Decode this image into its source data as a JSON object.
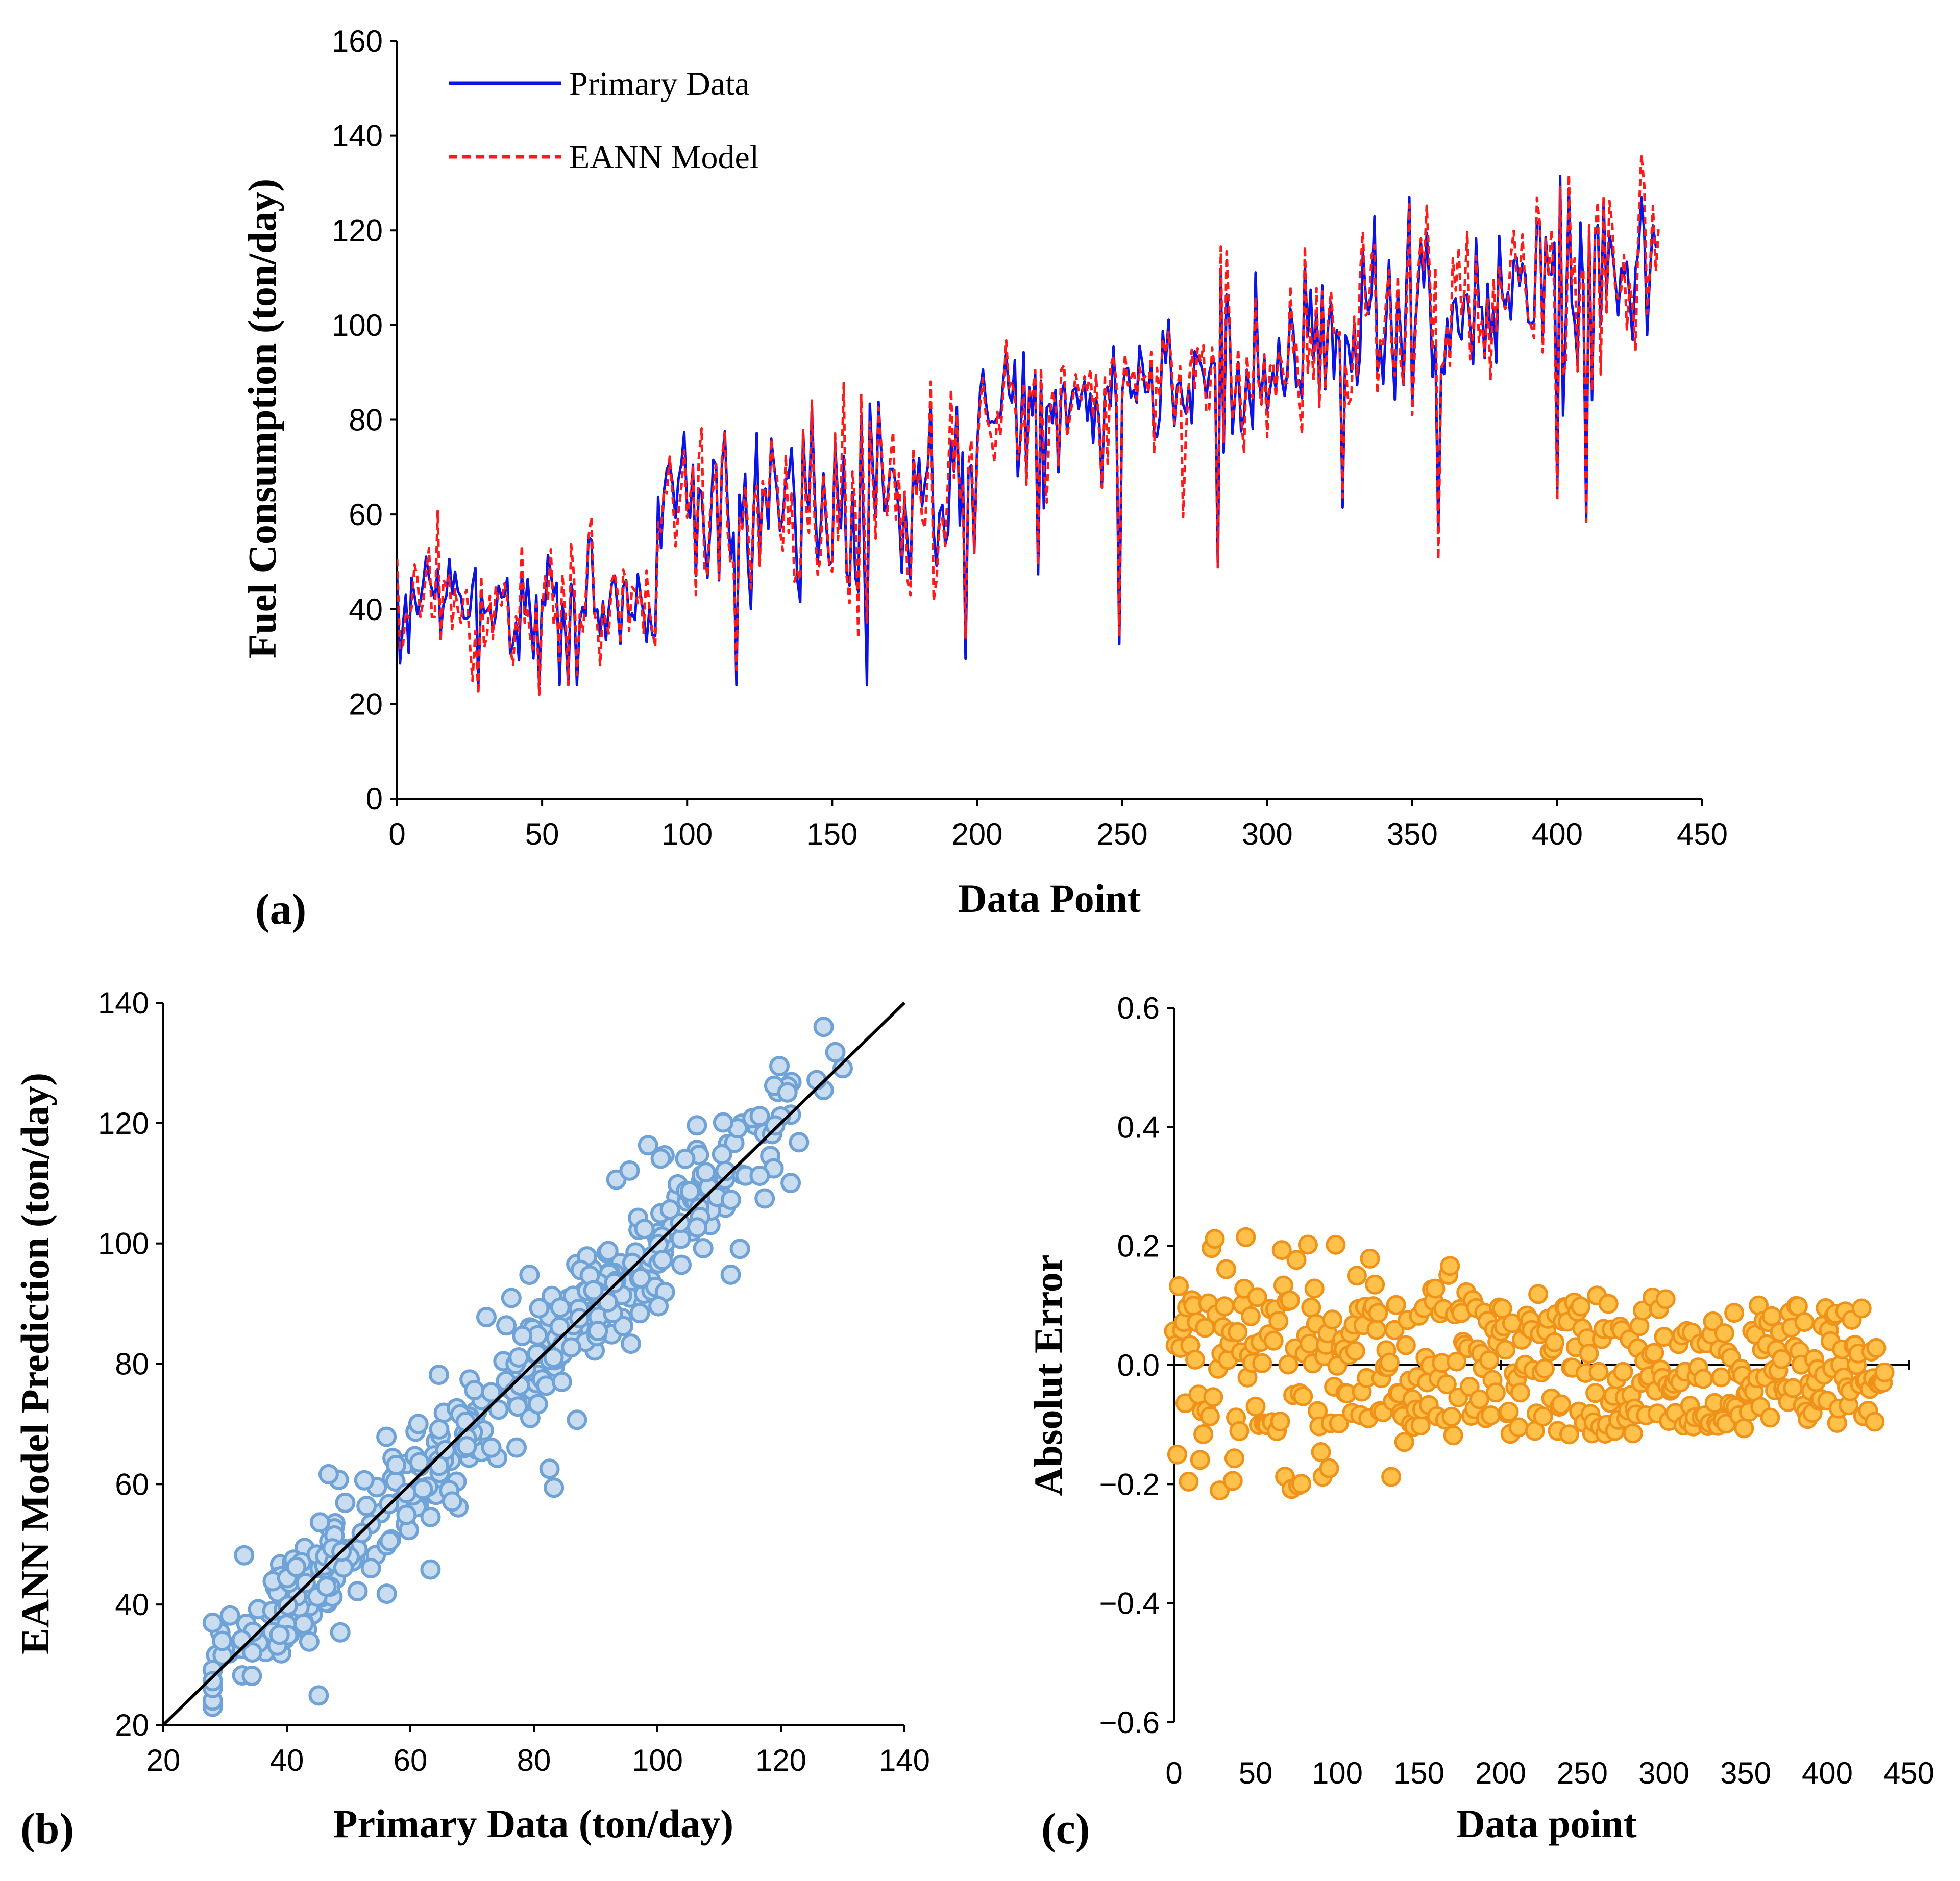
{
  "colors": {
    "primary": "#0a14e6",
    "eann": "#ff1a1a",
    "scatter_fill": "#c9dcf0",
    "scatter_edge": "#6fa3d8",
    "error_fill": "#ffc14a",
    "error_edge": "#f0921a"
  },
  "chart_data": [
    {
      "type": "line",
      "panel_label": "(a)",
      "xlabel": "Data Point",
      "ylabel": "Fuel Consumption (ton/day)",
      "xlim": [
        0,
        450
      ],
      "ylim": [
        0,
        160
      ],
      "xticks": [
        "0",
        "50",
        "100",
        "150",
        "200",
        "250",
        "300",
        "350",
        "400",
        "450"
      ],
      "yticks": [
        "0",
        "20",
        "40",
        "60",
        "80",
        "100",
        "120",
        "140",
        "160"
      ],
      "legend": [
        "Primary Data",
        "EANN Model"
      ],
      "series": [
        {
          "name": "Primary Data",
          "style": "solid",
          "n": 436,
          "anchor_x": [
            0,
            10,
            25,
            40,
            55,
            70,
            88,
            92,
            105,
            120,
            135,
            150,
            170,
            190,
            200,
            215,
            230,
            245,
            260,
            280,
            300,
            320,
            350,
            380,
            400,
            420,
            436
          ],
          "anchor_y": [
            33,
            45,
            42,
            38,
            45,
            42,
            38,
            62,
            66,
            62,
            64,
            58,
            64,
            58,
            80,
            82,
            84,
            85,
            86,
            92,
            92,
            96,
            100,
            104,
            116,
            112,
            117
          ]
        },
        {
          "name": "EANN Model",
          "style": "dashed",
          "n": 436,
          "anchor_x": [
            0,
            10,
            25,
            40,
            55,
            70,
            88,
            92,
            105,
            120,
            135,
            150,
            170,
            190,
            200,
            215,
            230,
            245,
            260,
            280,
            300,
            320,
            350,
            380,
            400,
            420,
            436
          ],
          "anchor_y": [
            33,
            45,
            42,
            38,
            45,
            42,
            38,
            62,
            66,
            62,
            64,
            58,
            64,
            58,
            80,
            82,
            84,
            85,
            86,
            92,
            92,
            96,
            100,
            104,
            116,
            112,
            117
          ]
        }
      ]
    },
    {
      "type": "scatter",
      "panel_label": "(b)",
      "xlabel": "Primary Data (ton/day)",
      "ylabel": "EANN Model Prediction (ton/day)",
      "xlim": [
        20,
        140
      ],
      "ylim": [
        20,
        140
      ],
      "xticks": [
        "20",
        "40",
        "60",
        "80",
        "100",
        "120",
        "140"
      ],
      "yticks": [
        "20",
        "40",
        "60",
        "80",
        "100",
        "120",
        "140"
      ],
      "reference_line": "y = x",
      "points_approx": {
        "count": 436,
        "x_range": [
          28,
          130
        ],
        "noise_sd": 6
      }
    },
    {
      "type": "scatter",
      "panel_label": "(c)",
      "xlabel": "Data point",
      "ylabel": "Absolut Error",
      "xlim": [
        0,
        450
      ],
      "ylim": [
        -0.6,
        0.6
      ],
      "xticks": [
        "0",
        "50",
        "100",
        "150",
        "200",
        "250",
        "300",
        "350",
        "400",
        "450"
      ],
      "yticks": [
        "0.6",
        "0.4",
        "0.2",
        "0.0",
        "−0.2",
        "−0.4",
        "−0.6"
      ],
      "points_approx": {
        "count": 436,
        "spread_early": 0.24,
        "spread_late": 0.1
      }
    }
  ]
}
